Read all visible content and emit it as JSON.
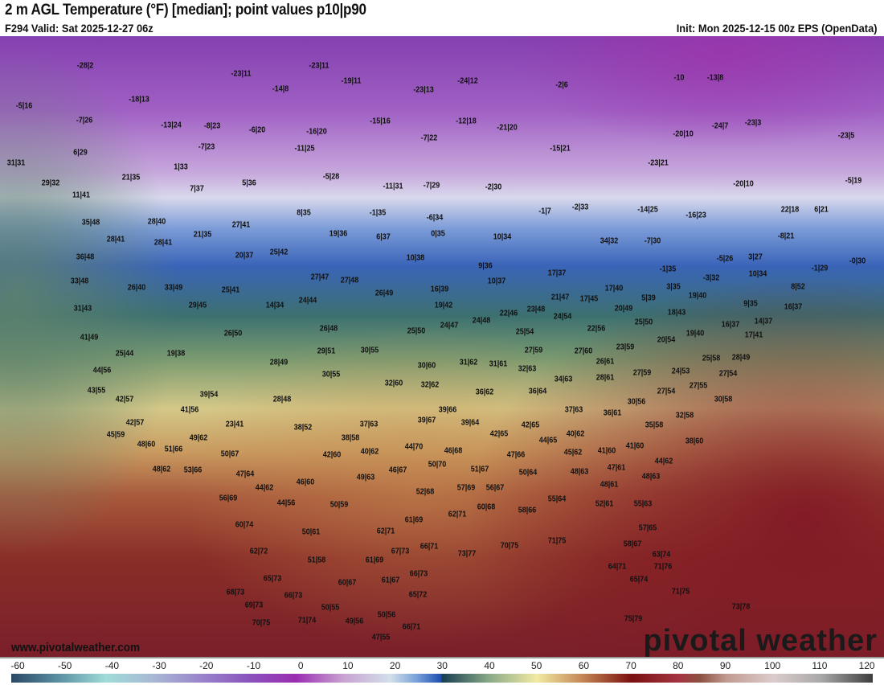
{
  "header": {
    "title": "2 m AGL Temperature (°F) [median]; point values p10|p90",
    "valid": "F294 Valid: Sat 2025-12-27 06z",
    "init": "Init: Mon 2025-12-15 00z EPS (OpenData)"
  },
  "map": {
    "website": "www.pivotalweather.com",
    "logo": "pivotal weather",
    "point_values": [
      "-28|2",
      "-23|11",
      "-23|11",
      "-19|11",
      "-24|12",
      "-23|13",
      "-14|8",
      "-2|6",
      "-10",
      "-13|8",
      "-5|16",
      "-18|13",
      "-7|26",
      "-13|24",
      "-8|23",
      "-6|20",
      "-16|20",
      "-15|16",
      "-12|18",
      "-21|20",
      "-24|7",
      "-23|3",
      "-23|5",
      "-20|10",
      "-7|22",
      "-15|21",
      "6|29",
      "-7|23",
      "-11|25",
      "31|31",
      "1|33",
      "21|35",
      "-5|28",
      "-23|21",
      "29|32",
      "7|37",
      "5|36",
      "-11|31",
      "-7|29",
      "-2|30",
      "-20|10",
      "-5|19",
      "11|41",
      "35|48",
      "28|40",
      "27|41",
      "8|35",
      "-1|35",
      "-6|34",
      "-1|7",
      "-2|33",
      "-14|25",
      "-16|23",
      "22|18",
      "6|21",
      "28|41",
      "28|41",
      "21|35",
      "19|36",
      "6|37",
      "0|35",
      "10|34",
      "34|32",
      "-7|30",
      "-8|21",
      "36|48",
      "20|37",
      "25|42",
      "10|38",
      "9|36",
      "-5|26",
      "3|27",
      "-1|29",
      "-0|30",
      "33|48",
      "26|40",
      "33|49",
      "27|47",
      "27|48",
      "10|37",
      "17|37",
      "-1|35",
      "-3|32",
      "10|34",
      "31|43",
      "25|41",
      "14|34",
      "24|44",
      "26|49",
      "16|39",
      "21|47",
      "17|40",
      "3|35",
      "19|40",
      "8|52",
      "29|45",
      "19|42",
      "17|45",
      "5|39",
      "9|35",
      "16|37",
      "41|49",
      "26|50",
      "26|48",
      "25|50",
      "24|47",
      "24|48",
      "22|46",
      "23|48",
      "24|54",
      "20|49",
      "18|43",
      "25|50",
      "16|37",
      "14|37",
      "25|44",
      "19|38",
      "29|51",
      "30|55",
      "25|54",
      "22|56",
      "19|40",
      "17|41",
      "20|54",
      "27|59",
      "27|60",
      "23|59",
      "44|56",
      "28|49",
      "30|60",
      "31|62",
      "31|61",
      "32|63",
      "26|61",
      "25|58",
      "28|49",
      "30|55",
      "32|60",
      "32|62",
      "34|63",
      "28|61",
      "27|59",
      "24|53",
      "27|54",
      "43|55",
      "39|54",
      "36|62",
      "36|64",
      "27|54",
      "27|55",
      "30|58",
      "42|57",
      "28|48",
      "41|56",
      "39|66",
      "37|63",
      "36|61",
      "30|56",
      "32|58",
      "23|41",
      "38|52",
      "37|63",
      "39|67",
      "39|64",
      "42|65",
      "35|58",
      "42|57",
      "45|59",
      "49|62",
      "38|58",
      "42|65",
      "40|62",
      "38|60",
      "48|60",
      "51|66",
      "44|70",
      "46|68",
      "44|65",
      "41|60",
      "50|67",
      "42|60",
      "40|62",
      "47|66",
      "45|62",
      "41|60",
      "44|62",
      "48|62",
      "53|66",
      "47|64",
      "50|70",
      "51|67",
      "46|67",
      "50|64",
      "48|63",
      "47|61",
      "49|63",
      "48|63",
      "44|62",
      "46|60",
      "52|68",
      "57|69",
      "56|67",
      "56|69",
      "44|56",
      "50|59",
      "48|61",
      "55|64",
      "52|61",
      "55|63",
      "58|66",
      "60|68",
      "62|71",
      "60|74",
      "61|69",
      "50|61",
      "62|71",
      "57|65",
      "70|75",
      "71|75",
      "73|77",
      "66|71",
      "67|73",
      "58|67",
      "63|74",
      "62|72",
      "51|58",
      "61|69",
      "64|71",
      "71|76",
      "65|73",
      "60|67",
      "61|67",
      "66|73",
      "65|74",
      "68|73",
      "66|73",
      "65|72",
      "71|75",
      "69|73",
      "50|55",
      "73|78",
      "71|74",
      "49|56",
      "50|56",
      "70|75",
      "75|79",
      "66|71",
      "47|55"
    ]
  },
  "colorbar": {
    "ticks": [
      "-60",
      "-50",
      "-40",
      "-30",
      "-20",
      "-10",
      "0",
      "10",
      "20",
      "30",
      "40",
      "50",
      "60",
      "70",
      "80",
      "90",
      "100",
      "110",
      "120"
    ]
  }
}
